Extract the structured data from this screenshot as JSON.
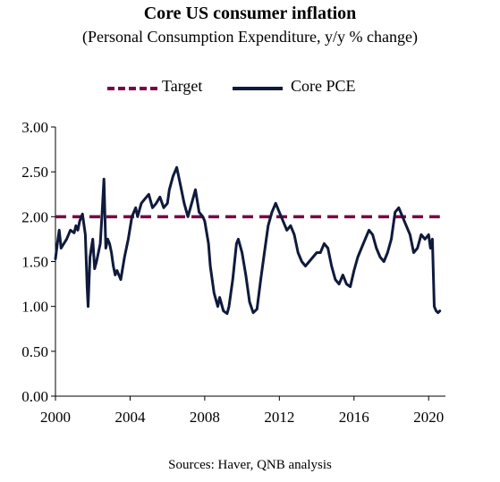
{
  "header": {
    "title": "Core US consumer inflation",
    "subtitle": "(Personal Consumption Expenditure, y/y % change)"
  },
  "footer": {
    "source": "Sources: Haver, QNB analysis"
  },
  "colors": {
    "target": "#7b0046",
    "core_pce": "#0f1a3c",
    "axis": "#000000"
  },
  "chart_data": {
    "type": "line",
    "legend_position": "top",
    "grid": false,
    "xlim": [
      2000,
      2020.9
    ],
    "ylim": [
      0,
      3.0
    ],
    "x_ticks": [
      2000,
      2004,
      2008,
      2012,
      2016,
      2020
    ],
    "x_tick_labels": [
      "2000",
      "2004",
      "2008",
      "2012",
      "2016",
      "2020"
    ],
    "y_ticks": [
      0,
      0.5,
      1.0,
      1.5,
      2.0,
      2.5,
      3.0
    ],
    "y_tick_labels": [
      "0.00",
      "0.50",
      "1.00",
      "1.50",
      "2.00",
      "2.50",
      "3.00"
    ],
    "series": [
      {
        "name": "Target",
        "style": "dashed",
        "x": [
          2000,
          2020.6
        ],
        "y": [
          2.0,
          2.0
        ]
      },
      {
        "name": "Core PCE",
        "style": "solid",
        "x": [
          2000.0,
          2000.1,
          2000.2,
          2000.3,
          2000.45,
          2000.6,
          2000.8,
          2001.0,
          2001.1,
          2001.2,
          2001.3,
          2001.45,
          2001.6,
          2001.7,
          2001.75,
          2001.85,
          2002.0,
          2002.1,
          2002.2,
          2002.3,
          2002.4,
          2002.5,
          2002.6,
          2002.7,
          2002.8,
          2002.9,
          2003.0,
          2003.1,
          2003.2,
          2003.3,
          2003.5,
          2003.7,
          2003.9,
          2004.1,
          2004.3,
          2004.4,
          2004.6,
          2004.8,
          2005.0,
          2005.2,
          2005.4,
          2005.6,
          2005.8,
          2006.0,
          2006.1,
          2006.3,
          2006.5,
          2006.7,
          2006.9,
          2007.1,
          2007.3,
          2007.5,
          2007.7,
          2007.9,
          2008.0,
          2008.2,
          2008.3,
          2008.5,
          2008.7,
          2008.8,
          2009.0,
          2009.2,
          2009.3,
          2009.5,
          2009.7,
          2009.8,
          2010.0,
          2010.2,
          2010.4,
          2010.6,
          2010.8,
          2011.0,
          2011.2,
          2011.4,
          2011.6,
          2011.8,
          2012.0,
          2012.2,
          2012.4,
          2012.6,
          2012.8,
          2013.0,
          2013.2,
          2013.4,
          2013.6,
          2013.8,
          2014.0,
          2014.2,
          2014.4,
          2014.6,
          2014.8,
          2015.0,
          2015.2,
          2015.4,
          2015.6,
          2015.8,
          2016.0,
          2016.2,
          2016.4,
          2016.6,
          2016.8,
          2017.0,
          2017.2,
          2017.4,
          2017.6,
          2017.8,
          2018.0,
          2018.2,
          2018.4,
          2018.6,
          2018.8,
          2019.0,
          2019.2,
          2019.4,
          2019.6,
          2019.8,
          2020.0,
          2020.1,
          2020.2,
          2020.3,
          2020.4,
          2020.5,
          2020.6
        ],
        "y": [
          1.53,
          1.7,
          1.85,
          1.65,
          1.7,
          1.75,
          1.85,
          1.82,
          1.9,
          1.85,
          1.95,
          2.03,
          1.8,
          1.2,
          1.0,
          1.55,
          1.75,
          1.42,
          1.5,
          1.6,
          1.7,
          2.05,
          2.42,
          1.65,
          1.75,
          1.7,
          1.6,
          1.45,
          1.35,
          1.4,
          1.3,
          1.55,
          1.75,
          2.0,
          2.1,
          2.0,
          2.15,
          2.2,
          2.25,
          2.1,
          2.15,
          2.22,
          2.1,
          2.15,
          2.3,
          2.45,
          2.55,
          2.35,
          2.15,
          2.0,
          2.15,
          2.3,
          2.05,
          2.0,
          1.95,
          1.7,
          1.45,
          1.15,
          1.0,
          1.1,
          0.95,
          0.92,
          1.0,
          1.3,
          1.7,
          1.75,
          1.6,
          1.35,
          1.05,
          0.93,
          0.97,
          1.3,
          1.6,
          1.9,
          2.05,
          2.15,
          2.05,
          1.95,
          1.85,
          1.9,
          1.8,
          1.6,
          1.5,
          1.45,
          1.5,
          1.55,
          1.6,
          1.6,
          1.7,
          1.65,
          1.45,
          1.3,
          1.25,
          1.35,
          1.25,
          1.22,
          1.4,
          1.55,
          1.65,
          1.75,
          1.85,
          1.8,
          1.65,
          1.55,
          1.5,
          1.6,
          1.75,
          2.05,
          2.1,
          2.0,
          1.9,
          1.8,
          1.6,
          1.65,
          1.8,
          1.75,
          1.8,
          1.65,
          1.75,
          1.0,
          0.95,
          0.93,
          0.95
        ]
      }
    ]
  }
}
